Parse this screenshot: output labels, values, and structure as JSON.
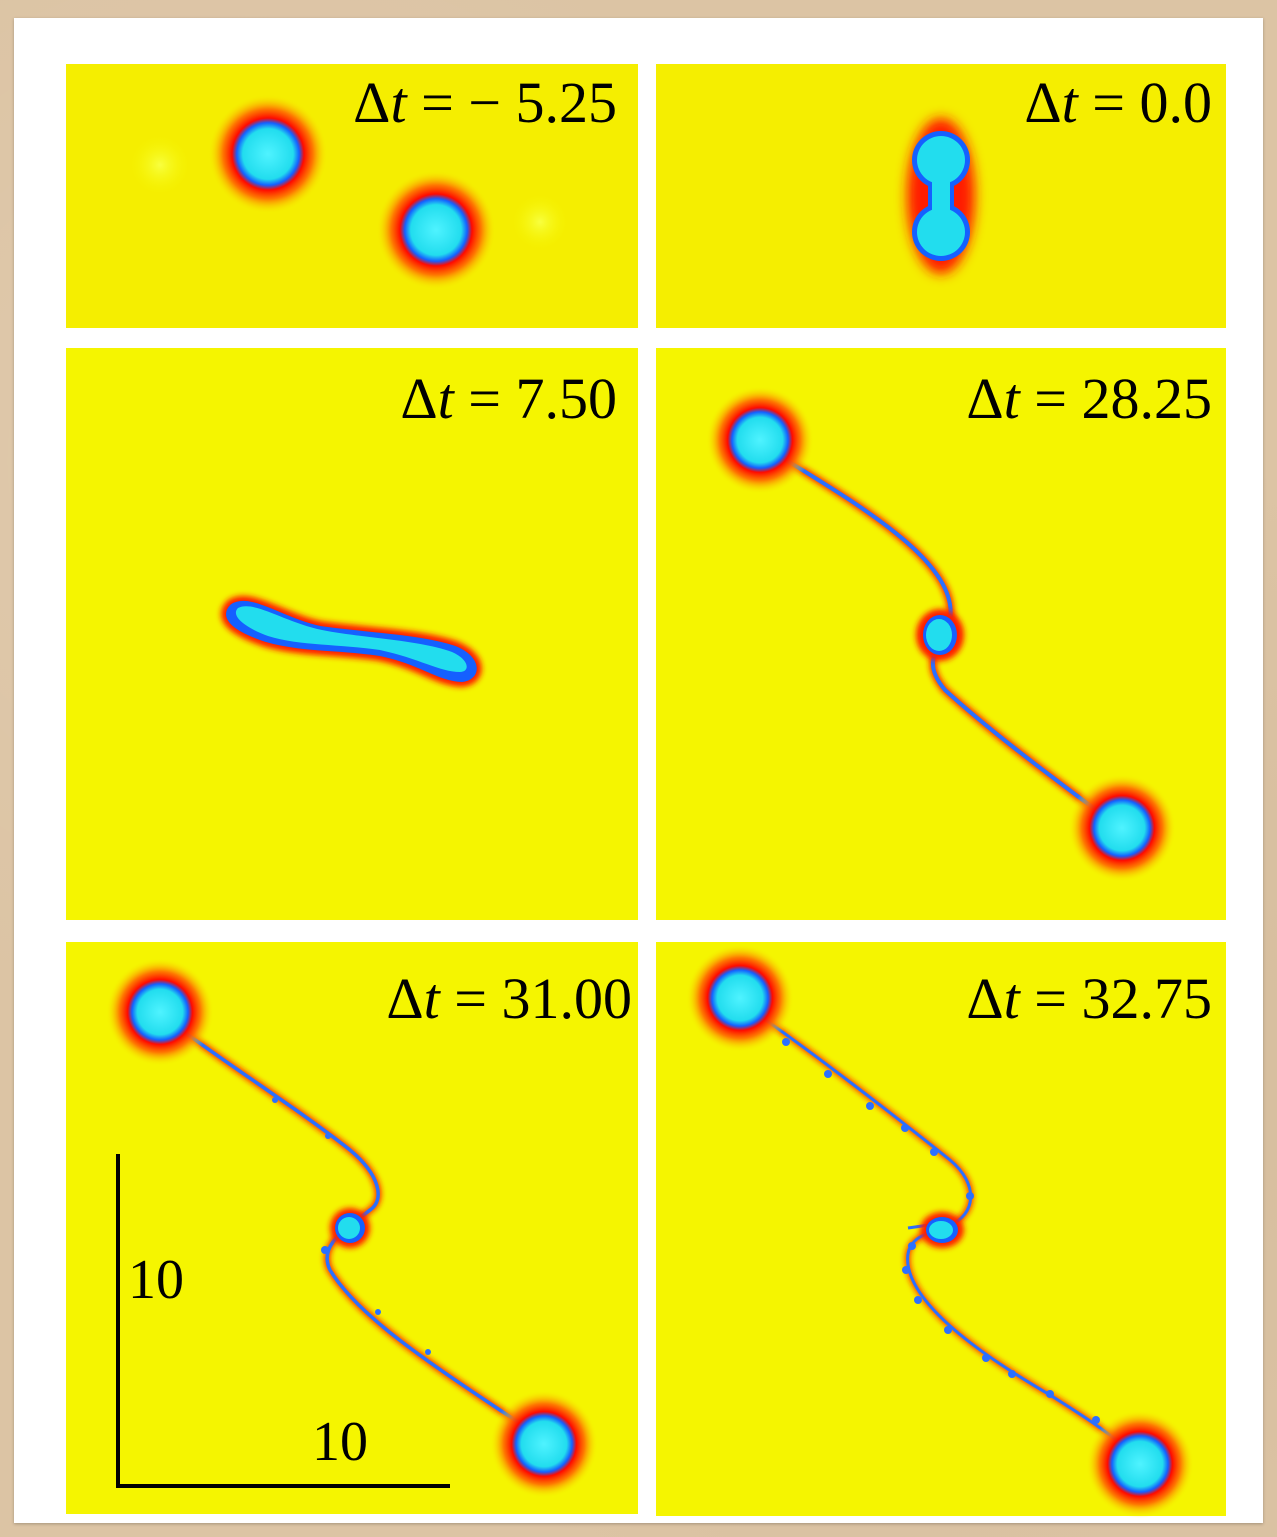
{
  "panels": [
    {
      "label": "Δt = − 5.25",
      "symbol": "Δ",
      "var": "t",
      "rhs": "= − 5.25"
    },
    {
      "label": "Δt = 0.0",
      "symbol": "Δ",
      "var": "t",
      "rhs": "= 0.0"
    },
    {
      "label": "Δt = 7.50",
      "symbol": "Δ",
      "var": "t",
      "rhs": "= 7.50"
    },
    {
      "label": "Δt = 28.25",
      "symbol": "Δ",
      "var": "t",
      "rhs": "= 28.25"
    },
    {
      "label": "Δt = 31.00",
      "symbol": "Δ",
      "var": "t",
      "rhs": "= 31.00"
    },
    {
      "label": "Δt = 32.75",
      "symbol": "Δ",
      "var": "t",
      "rhs": "= 32.75"
    }
  ],
  "scale_bar": {
    "vertical_label": "10",
    "horizontal_label": "10"
  },
  "colors": {
    "background": "#f5f500",
    "core": "#22ddee",
    "edge": "#1560ff",
    "halo": "#ff1a00",
    "page": "#ffffff"
  }
}
